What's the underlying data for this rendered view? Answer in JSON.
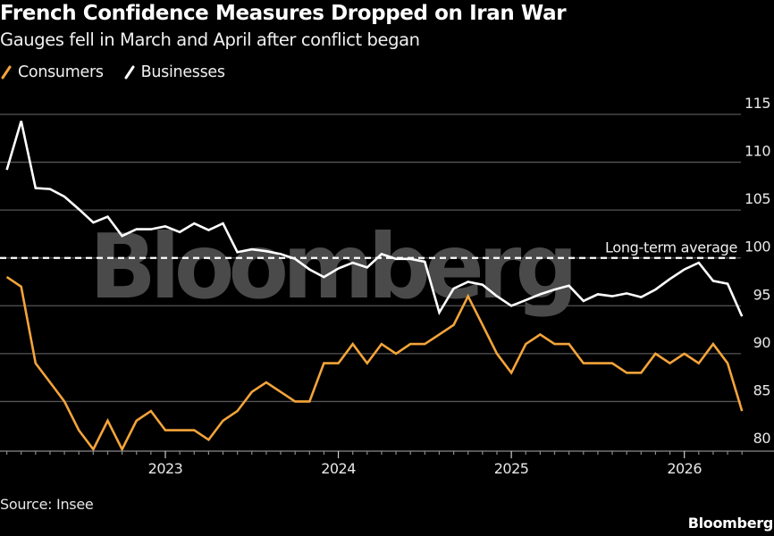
{
  "header": {
    "title": "French Confidence Measures Dropped on Iran War",
    "subtitle": "Gauges fell in March and April after conflict began"
  },
  "footer": {
    "source": "Source: Insee",
    "brand": "Bloomberg"
  },
  "watermark": "Bloomberg",
  "colors": {
    "background": "#000000",
    "consumers": "#f4a43a",
    "businesses": "#ffffff",
    "gridline": "#555555",
    "watermark": "#4a4a4a"
  },
  "chart_data": {
    "type": "line",
    "title": "French Confidence Measures Dropped on Iran War",
    "subtitle": "Gauges fell in March and April after conflict began",
    "xlabel": "",
    "ylabel": "",
    "ylim": [
      80,
      115
    ],
    "yticks": [
      80,
      85,
      90,
      95,
      100,
      105,
      110,
      115
    ],
    "y_axis_side": "right",
    "grid": true,
    "legend_placement": "top-left",
    "x_start": "2022-02",
    "x_end": "2026-05",
    "xticks": [
      {
        "label": "2023",
        "month": "2023-01"
      },
      {
        "label": "2024",
        "month": "2024-01"
      },
      {
        "label": "2025",
        "month": "2025-01"
      },
      {
        "label": "2026",
        "month": "2026-01"
      }
    ],
    "reference_line": {
      "label": "Long-term average",
      "value": 100,
      "style": "dashed"
    },
    "series": [
      {
        "name": "Consumers",
        "color": "#f4a43a",
        "values": [
          98,
          97,
          89,
          87,
          85,
          82,
          80,
          83,
          80,
          83,
          84,
          82,
          82,
          82,
          81,
          83,
          84,
          86,
          87,
          86,
          85,
          85,
          89,
          89,
          91,
          89,
          91,
          90,
          91,
          91,
          92,
          93,
          96,
          93,
          90,
          88,
          91,
          92,
          91,
          91,
          89,
          89,
          89,
          88,
          88,
          90,
          89,
          90,
          89,
          91,
          89,
          84
        ]
      },
      {
        "name": "Businesses",
        "color": "#ffffff",
        "values": [
          109.2,
          114.3,
          107.3,
          107.2,
          106.4,
          105.1,
          103.7,
          104.3,
          102.3,
          103.0,
          103.0,
          103.3,
          102.7,
          103.6,
          102.9,
          103.6,
          100.6,
          100.9,
          100.7,
          100.4,
          99.9,
          98.8,
          98.0,
          98.9,
          99.5,
          99.0,
          100.4,
          99.9,
          99.9,
          99.6,
          94.3,
          96.8,
          97.5,
          97.2,
          96.0,
          95.0,
          95.6,
          96.2,
          96.7,
          97.1,
          95.5,
          96.2,
          96.0,
          96.3,
          95.9,
          96.7,
          97.8,
          98.8,
          99.5,
          97.6,
          97.3,
          93.9
        ]
      }
    ]
  }
}
